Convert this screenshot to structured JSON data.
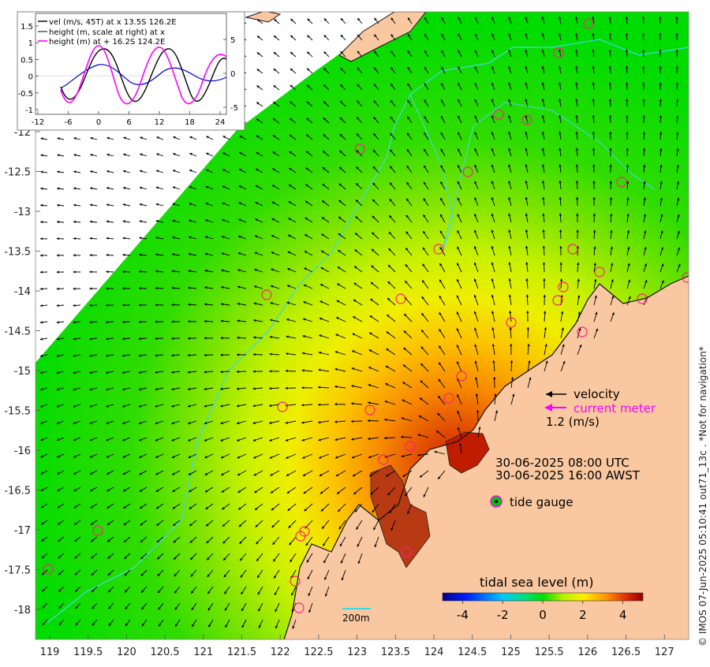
{
  "map": {
    "x_ticks": [
      "119",
      "119.5",
      "120",
      "120.5",
      "121",
      "121.5",
      "122",
      "122.5",
      "123",
      "123.5",
      "124",
      "124.5",
      "125",
      "125.5",
      "126",
      "126.5",
      "127"
    ],
    "y_ticks": [
      "-12",
      "-12.5",
      "-13",
      "-13.5",
      "-14",
      "-14.5",
      "-15",
      "-15.5",
      "-16",
      "-16.5",
      "-17",
      "-17.5",
      "-18"
    ],
    "colors": {
      "land": "#fac8a0",
      "deep": "#00dc00",
      "coast_high": "#c81e00",
      "contour": "#40d8e0",
      "arrow": "#000000"
    }
  },
  "inset": {
    "legend": [
      "vel (m/s, 45T) at x 13.5S 126.2E",
      "height (m, scale at right) at x",
      "height (m) at + 16.2S 124.2E"
    ],
    "x_ticks": [
      "-12",
      "-6",
      "0",
      "6",
      "12",
      "18",
      "24"
    ],
    "y_left_ticks": [
      "1.5",
      "1",
      "0.5",
      "0",
      "-0.5",
      "-1"
    ],
    "y_right_ticks": [
      "5",
      "0",
      "-5"
    ],
    "colors": {
      "velocity": "#000000",
      "height_x": "#0000cc",
      "height_plus": "#ff00ff"
    }
  },
  "annotations": {
    "velocity_label": "velocity",
    "current_meter_label": "current meter",
    "scale_label": "1.2 (m/s)",
    "time_utc": "30-06-2025 08:00 UTC",
    "time_awst": "30-06-2025 16:00 AWST",
    "tide_gauge_label": "tide gauge",
    "depth_contour_label": "200m"
  },
  "colorbar": {
    "title": "tidal sea level (m)",
    "ticks": [
      "-4",
      "-2",
      "0",
      "2",
      "4"
    ],
    "range": [
      -5,
      5
    ]
  },
  "credit": "© IMOS 07-Jun-2025 05:10:41 out71_13c . *Not for navigation*"
}
